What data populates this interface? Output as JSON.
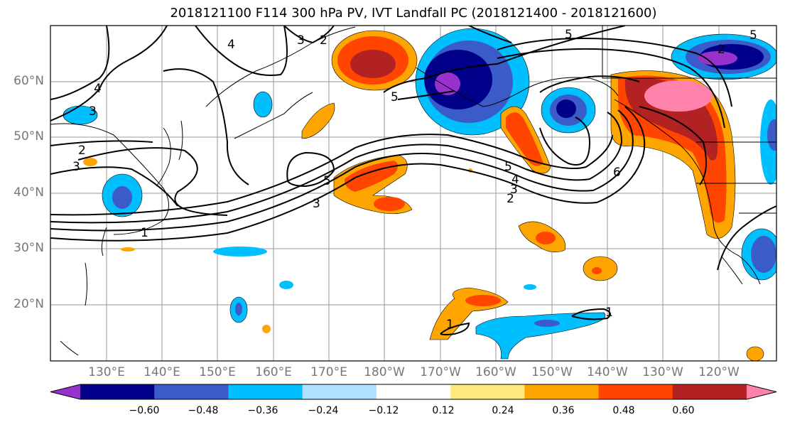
{
  "title": "2018121100 F114 300 hPa PV, IVT Landfall PC (2018121400 - 2018121600)",
  "lat_labels": [
    "60°N",
    "50°N",
    "40°N",
    "30°N",
    "20°N"
  ],
  "lon_labels": [
    "130°E",
    "140°E",
    "150°E",
    "160°E",
    "170°E",
    "180°W",
    "170°W",
    "160°W",
    "150°W",
    "140°W",
    "130°W",
    "120°W"
  ],
  "colorbar": {
    "ticks": [
      "−0.60",
      "−0.48",
      "−0.36",
      "−0.24",
      "−0.12",
      "0.12",
      "0.24",
      "0.36",
      "0.48",
      "0.60"
    ],
    "colors": [
      "#9932CC",
      "#00008B",
      "#3A5BC8",
      "#00BFFF",
      "#B0E0FF",
      "#FFFFFF",
      "#FFE97F",
      "#FFA500",
      "#FF4500",
      "#B22222",
      "#FF82AB"
    ]
  },
  "contour_labels": [
    "4",
    "3",
    "2",
    "5",
    "4",
    "3",
    "2",
    "5",
    "5",
    "2",
    "3",
    "5",
    "3",
    "1",
    "5",
    "4",
    "3",
    "2",
    "6",
    "1",
    "1"
  ]
}
